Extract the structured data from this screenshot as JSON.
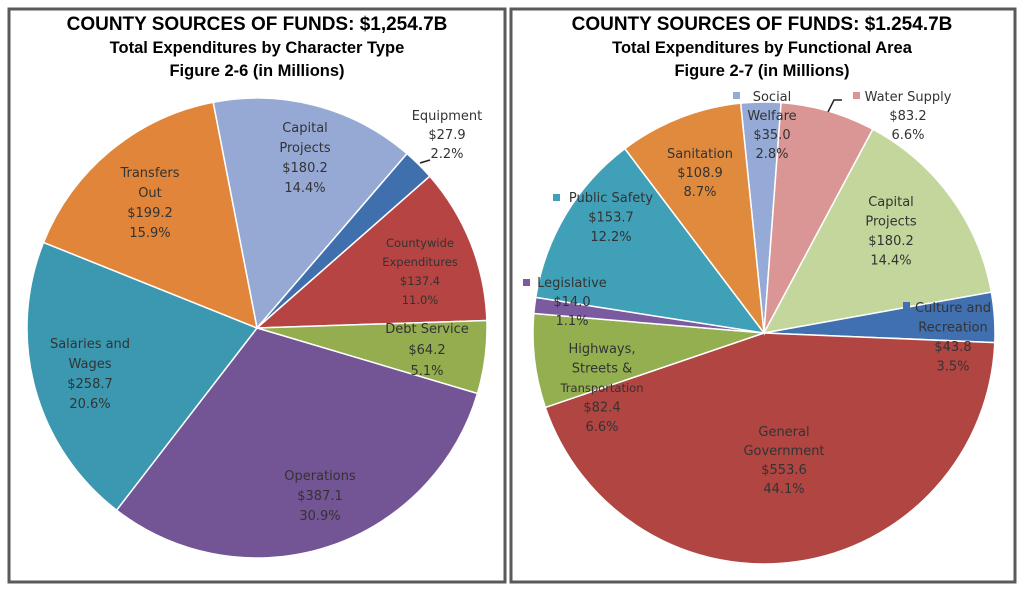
{
  "chart_data": [
    {
      "type": "pie",
      "title": "COUNTY SOURCES OF FUNDS: $1,254.7B",
      "subtitle": "Total Expenditures by Character Type",
      "figure": "Figure 2-6 (in Millions)",
      "slices": [
        {
          "name_lines": [
            "Capital",
            "Projects"
          ],
          "value": 180.2,
          "value_label": "$180.2",
          "percent": "14.4%",
          "color": "#95A9D4"
        },
        {
          "name_lines": [
            "Equipment"
          ],
          "value": 27.9,
          "value_label": "$27.9",
          "percent": "2.2%",
          "color": "#3F6FAD"
        },
        {
          "name_lines": [
            "Countywide",
            "Expenditures"
          ],
          "value": 137.4,
          "value_label": "$137.4",
          "percent": "11.0%",
          "color": "#B54442"
        },
        {
          "name_lines": [
            "Debt Service"
          ],
          "value": 64.2,
          "value_label": "$64.2",
          "percent": "5.1%",
          "color": "#93AD4F"
        },
        {
          "name_lines": [
            "Operations"
          ],
          "value": 387.1,
          "value_label": "$387.1",
          "percent": "30.9%",
          "color": "#735494"
        },
        {
          "name_lines": [
            "Salaries and",
            "Wages"
          ],
          "value": 258.7,
          "value_label": "$258.7",
          "percent": "20.6%",
          "color": "#3B98B0"
        },
        {
          "name_lines": [
            "Transfers",
            "Out"
          ],
          "value": 199.2,
          "value_label": "$199.2",
          "percent": "15.9%",
          "color": "#E0853A"
        }
      ]
    },
    {
      "type": "pie",
      "title": "COUNTY SOURCES OF FUNDS: $1.254.7B",
      "subtitle": "Total Expenditures by Functional Area",
      "figure": "Figure 2-7 (in Millions)",
      "slices": [
        {
          "name_lines": [
            "Social",
            "Welfare"
          ],
          "value": 35.0,
          "value_label": "$35.0",
          "percent": "2.8%",
          "color": "#95AAD6"
        },
        {
          "name_lines": [
            "Water Supply"
          ],
          "value": 83.2,
          "value_label": "$83.2",
          "percent": "6.6%",
          "color": "#D99694"
        },
        {
          "name_lines": [
            "Capital",
            "Projects"
          ],
          "value": 180.2,
          "value_label": "$180.2",
          "percent": "14.4%",
          "color": "#C3D69B"
        },
        {
          "name_lines": [
            "Culture and",
            "Recreation"
          ],
          "value": 43.8,
          "value_label": "$43.8",
          "percent": "3.5%",
          "color": "#4170B0"
        },
        {
          "name_lines": [
            "General",
            "Government"
          ],
          "value": 553.6,
          "value_label": "$553.6",
          "percent": "44.1%",
          "color": "#B04542"
        },
        {
          "name_lines": [
            "Highways,",
            "Streets &",
            "Transportation"
          ],
          "value": 82.4,
          "value_label": "$82.4",
          "percent": "6.6%",
          "color": "#93AF50"
        },
        {
          "name_lines": [
            "Legislative"
          ],
          "value": 14.0,
          "value_label": "$14.0",
          "percent": "1.1%",
          "color": "#7B5BA0"
        },
        {
          "name_lines": [
            "Public Safety"
          ],
          "value": 153.7,
          "value_label": "$153.7",
          "percent": "12.2%",
          "color": "#40A0B8"
        },
        {
          "name_lines": [
            "Sanitation"
          ],
          "value": 108.9,
          "value_label": "$108.9",
          "percent": "8.7%",
          "color": "#E08A3E"
        }
      ]
    }
  ]
}
